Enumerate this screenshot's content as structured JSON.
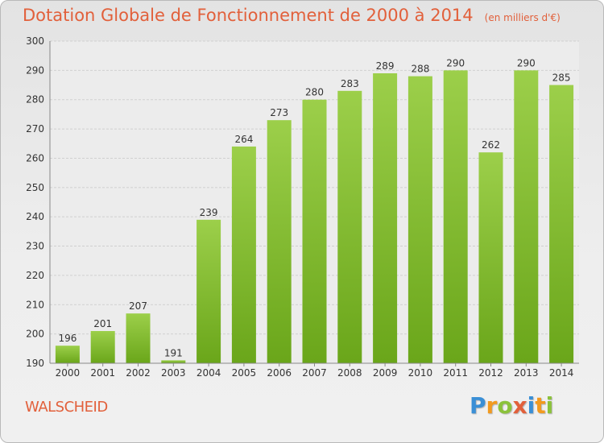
{
  "header": {
    "title": "Dotation Globale de Fonctionnement de 2000 à 2014",
    "unit": "(en milliers d'€)"
  },
  "commune": "WALSCHEID",
  "logo": {
    "letters": [
      "P",
      "r",
      "o",
      "x",
      "i",
      "t",
      "i"
    ]
  },
  "chart_data": {
    "type": "bar",
    "title": "Dotation Globale de Fonctionnement de 2000 à 2014",
    "subtitle": "(en milliers d'€)",
    "categories": [
      "2000",
      "2001",
      "2002",
      "2003",
      "2004",
      "2005",
      "2006",
      "2007",
      "2008",
      "2009",
      "2010",
      "2011",
      "2012",
      "2013",
      "2014"
    ],
    "values": [
      196,
      201,
      207,
      191,
      239,
      264,
      273,
      280,
      283,
      289,
      288,
      290,
      262,
      290,
      285
    ],
    "ylim": [
      190,
      300
    ],
    "yticks": [
      190,
      200,
      210,
      220,
      230,
      240,
      250,
      260,
      270,
      280,
      290,
      300
    ],
    "grid": true,
    "bar_color": "#8cc63f"
  }
}
